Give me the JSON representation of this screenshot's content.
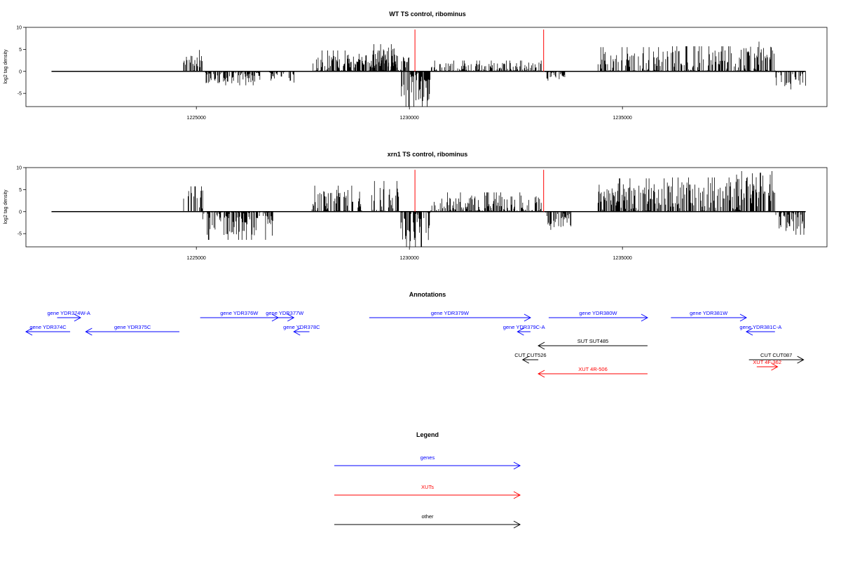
{
  "colors": {
    "gene": "#0000ff",
    "xut": "#ff0000",
    "other": "#000000",
    "density_bar": "#000000",
    "marker": "#ff0000"
  },
  "chart_data": [
    {
      "type": "bar",
      "title": "WT TS control, ribominus",
      "ylabel": "log2 tag density",
      "xlim": [
        1221000,
        1239800
      ],
      "ylim": [
        -8,
        10
      ],
      "yticks": [
        -5,
        0,
        5,
        10
      ],
      "ytick_labels": [
        "-5",
        "0",
        "5",
        "10"
      ],
      "xticks": [
        1225000,
        1230000,
        1235000
      ],
      "xtick_labels": [
        "1225000",
        "1230000",
        "1235000"
      ],
      "red_markers": [
        1230130,
        1233150
      ],
      "red_marker_height": 9.5,
      "segments": [
        {
          "x0": 1224700,
          "x1": 1225150,
          "sign": 1,
          "mean": 2.0,
          "amp": 2.2
        },
        {
          "x0": 1225200,
          "x1": 1226500,
          "sign": -1,
          "mean": 1.2,
          "amp": 1.5
        },
        {
          "x0": 1226700,
          "x1": 1227300,
          "sign": -1,
          "mean": 1.0,
          "amp": 1.2
        },
        {
          "x0": 1227700,
          "x1": 1230000,
          "sign": 1,
          "mean": 1.5,
          "amp": 2.5
        },
        {
          "x0": 1229100,
          "x1": 1229750,
          "sign": 1,
          "mean": 2.8,
          "amp": 2.6
        },
        {
          "x0": 1229800,
          "x1": 1230500,
          "sign": -1,
          "mean": 3.5,
          "amp": 3.5
        },
        {
          "x0": 1230500,
          "x1": 1233100,
          "sign": 1,
          "mean": 0.5,
          "amp": 1.5
        },
        {
          "x0": 1233200,
          "x1": 1233700,
          "sign": -1,
          "mean": 0.8,
          "amp": 1.0
        },
        {
          "x0": 1234400,
          "x1": 1236000,
          "sign": 1,
          "mean": 1.6,
          "amp": 3.0
        },
        {
          "x0": 1236000,
          "x1": 1237600,
          "sign": 1,
          "mean": 1.8,
          "amp": 3.0
        },
        {
          "x0": 1237600,
          "x1": 1238600,
          "sign": 1,
          "mean": 2.2,
          "amp": 3.5
        },
        {
          "x0": 1238600,
          "x1": 1239300,
          "sign": -1,
          "mean": 1.5,
          "amp": 2.0
        }
      ]
    },
    {
      "type": "bar",
      "title": "xrn1 TS control, ribominus",
      "ylabel": "log2 tag density",
      "xlim": [
        1221000,
        1239800
      ],
      "ylim": [
        -8,
        10
      ],
      "yticks": [
        -5,
        0,
        5,
        10
      ],
      "ytick_labels": [
        "-5",
        "0",
        "5",
        "10"
      ],
      "xticks": [
        1225000,
        1230000,
        1235000
      ],
      "xtick_labels": [
        "1225000",
        "1230000",
        "1235000"
      ],
      "red_markers": [
        1230130,
        1233150
      ],
      "red_marker_height": 9.5,
      "segments": [
        {
          "x0": 1224700,
          "x1": 1225150,
          "sign": 1,
          "mean": 2.5,
          "amp": 2.5
        },
        {
          "x0": 1225150,
          "x1": 1226800,
          "sign": -1,
          "mean": 2.5,
          "amp": 3.0
        },
        {
          "x0": 1227700,
          "x1": 1228900,
          "sign": 1,
          "mean": 2.0,
          "amp": 3.0
        },
        {
          "x0": 1229100,
          "x1": 1229800,
          "sign": 1,
          "mean": 2.8,
          "amp": 3.2
        },
        {
          "x0": 1229800,
          "x1": 1230500,
          "sign": -1,
          "mean": 3.5,
          "amp": 3.5
        },
        {
          "x0": 1230500,
          "x1": 1233100,
          "sign": 1,
          "mean": 1.5,
          "amp": 2.2
        },
        {
          "x0": 1233200,
          "x1": 1233800,
          "sign": -1,
          "mean": 1.8,
          "amp": 1.8
        },
        {
          "x0": 1234400,
          "x1": 1236000,
          "sign": 1,
          "mean": 3.0,
          "amp": 3.5
        },
        {
          "x0": 1236000,
          "x1": 1237600,
          "sign": 1,
          "mean": 3.2,
          "amp": 3.5
        },
        {
          "x0": 1237600,
          "x1": 1238600,
          "sign": 1,
          "mean": 4.5,
          "amp": 4.5
        },
        {
          "x0": 1238600,
          "x1": 1239300,
          "sign": -1,
          "mean": 2.0,
          "amp": 2.5
        }
      ]
    }
  ],
  "annotations": {
    "title": "Annotations",
    "features": [
      {
        "label": "gene YDR374C",
        "kind": "gene",
        "strand": "-",
        "start": 1221000,
        "end": 1221850,
        "row": 1
      },
      {
        "label": "gene YDR374W-A",
        "kind": "gene",
        "strand": "+",
        "start": 1221600,
        "end": 1222050,
        "row": 0
      },
      {
        "label": "gene YDR375C",
        "kind": "gene",
        "strand": "-",
        "start": 1222150,
        "end": 1223950,
        "row": 1
      },
      {
        "label": "gene YDR376W",
        "kind": "gene",
        "strand": "+",
        "start": 1224350,
        "end": 1225850,
        "row": 0
      },
      {
        "label": "gene YDR377W",
        "kind": "gene",
        "strand": "+",
        "start": 1225800,
        "end": 1226150,
        "row": 0
      },
      {
        "label": "gene YDR378C",
        "kind": "gene",
        "strand": "-",
        "start": 1226150,
        "end": 1226450,
        "row": 1
      },
      {
        "label": "gene YDR379W",
        "kind": "gene",
        "strand": "+",
        "start": 1227600,
        "end": 1230700,
        "row": 0
      },
      {
        "label": "gene YDR379C-A",
        "kind": "gene",
        "strand": "-",
        "start": 1230450,
        "end": 1230700,
        "row": 1
      },
      {
        "label": "gene YDR380W",
        "kind": "gene",
        "strand": "+",
        "start": 1231050,
        "end": 1232950,
        "row": 0
      },
      {
        "label": "gene YDR381W",
        "kind": "gene",
        "strand": "+",
        "start": 1233400,
        "end": 1234850,
        "row": 0
      },
      {
        "label": "gene YDR381C-A",
        "kind": "gene",
        "strand": "-",
        "start": 1234850,
        "end": 1235400,
        "row": 1
      },
      {
        "label": "SUT SUT485",
        "kind": "other",
        "strand": "-",
        "start": 1230850,
        "end": 1232950,
        "row": 2
      },
      {
        "label": "CUT CUT526",
        "kind": "other",
        "strand": "-",
        "start": 1230550,
        "end": 1230850,
        "row": 3
      },
      {
        "label": "CUT CUT087",
        "kind": "other",
        "strand": "+",
        "start": 1234900,
        "end": 1235950,
        "row": 3
      },
      {
        "label": "XUT 4R-506",
        "kind": "xut",
        "strand": "-",
        "start": 1230850,
        "end": 1232950,
        "row": 4
      },
      {
        "label": "XUT 4F-362",
        "kind": "xut",
        "strand": "+",
        "start": 1235050,
        "end": 1235450,
        "row": 3.5
      }
    ]
  },
  "legend": {
    "title": "Legend",
    "items": [
      {
        "label": "genes",
        "kind": "gene"
      },
      {
        "label": "XUTs",
        "kind": "xut"
      },
      {
        "label": "other",
        "kind": "other"
      }
    ]
  }
}
